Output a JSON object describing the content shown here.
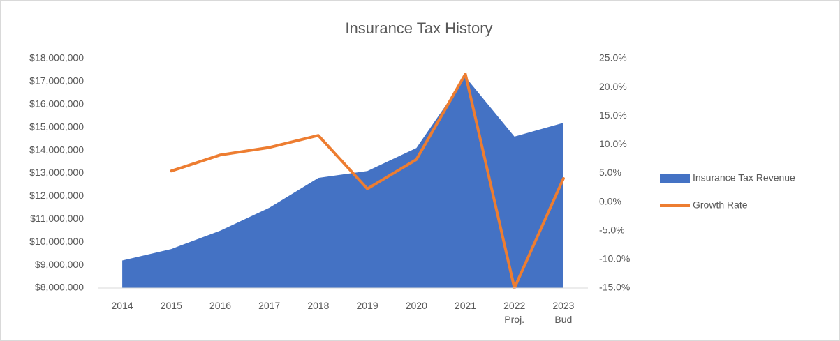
{
  "chart_data": {
    "type": "area-line",
    "title": "Insurance Tax History",
    "categories": [
      "2014",
      "2015",
      "2016",
      "2017",
      "2018",
      "2019",
      "2020",
      "2021",
      "2022 Proj.",
      "2023 Bud"
    ],
    "series": [
      {
        "name": "Insurance Tax Revenue",
        "type": "area",
        "color": "#4472c4",
        "axis": "y",
        "values": [
          9200000,
          9700000,
          10500000,
          11500000,
          12800000,
          13100000,
          14100000,
          17200000,
          14600000,
          15200000
        ]
      },
      {
        "name": "Growth Rate",
        "type": "line",
        "color": "#ed7d31",
        "axis": "y2",
        "values": [
          null,
          5.4,
          8.2,
          9.5,
          11.6,
          2.3,
          7.4,
          22.3,
          -15.0,
          4.1
        ]
      }
    ],
    "ylim": [
      8000000,
      18000000
    ],
    "yticks": [
      {
        "value": 8000000,
        "label": "$8,000,000"
      },
      {
        "value": 9000000,
        "label": "$9,000,000"
      },
      {
        "value": 10000000,
        "label": "$10,000,000"
      },
      {
        "value": 11000000,
        "label": "$11,000,000"
      },
      {
        "value": 12000000,
        "label": "$12,000,000"
      },
      {
        "value": 13000000,
        "label": "$13,000,000"
      },
      {
        "value": 14000000,
        "label": "$14,000,000"
      },
      {
        "value": 15000000,
        "label": "$15,000,000"
      },
      {
        "value": 16000000,
        "label": "$16,000,000"
      },
      {
        "value": 17000000,
        "label": "$17,000,000"
      },
      {
        "value": 18000000,
        "label": "$18,000,000"
      }
    ],
    "y2lim": [
      -15,
      25
    ],
    "y2ticks": [
      {
        "value": -15,
        "label": "-15.0%"
      },
      {
        "value": -10,
        "label": "-10.0%"
      },
      {
        "value": -5,
        "label": "-5.0%"
      },
      {
        "value": 0,
        "label": "0.0%"
      },
      {
        "value": 5,
        "label": "5.0%"
      },
      {
        "value": 10,
        "label": "10.0%"
      },
      {
        "value": 15,
        "label": "15.0%"
      },
      {
        "value": 20,
        "label": "20.0%"
      },
      {
        "value": 25,
        "label": "25.0%"
      }
    ],
    "grid": false,
    "legend": "right"
  }
}
